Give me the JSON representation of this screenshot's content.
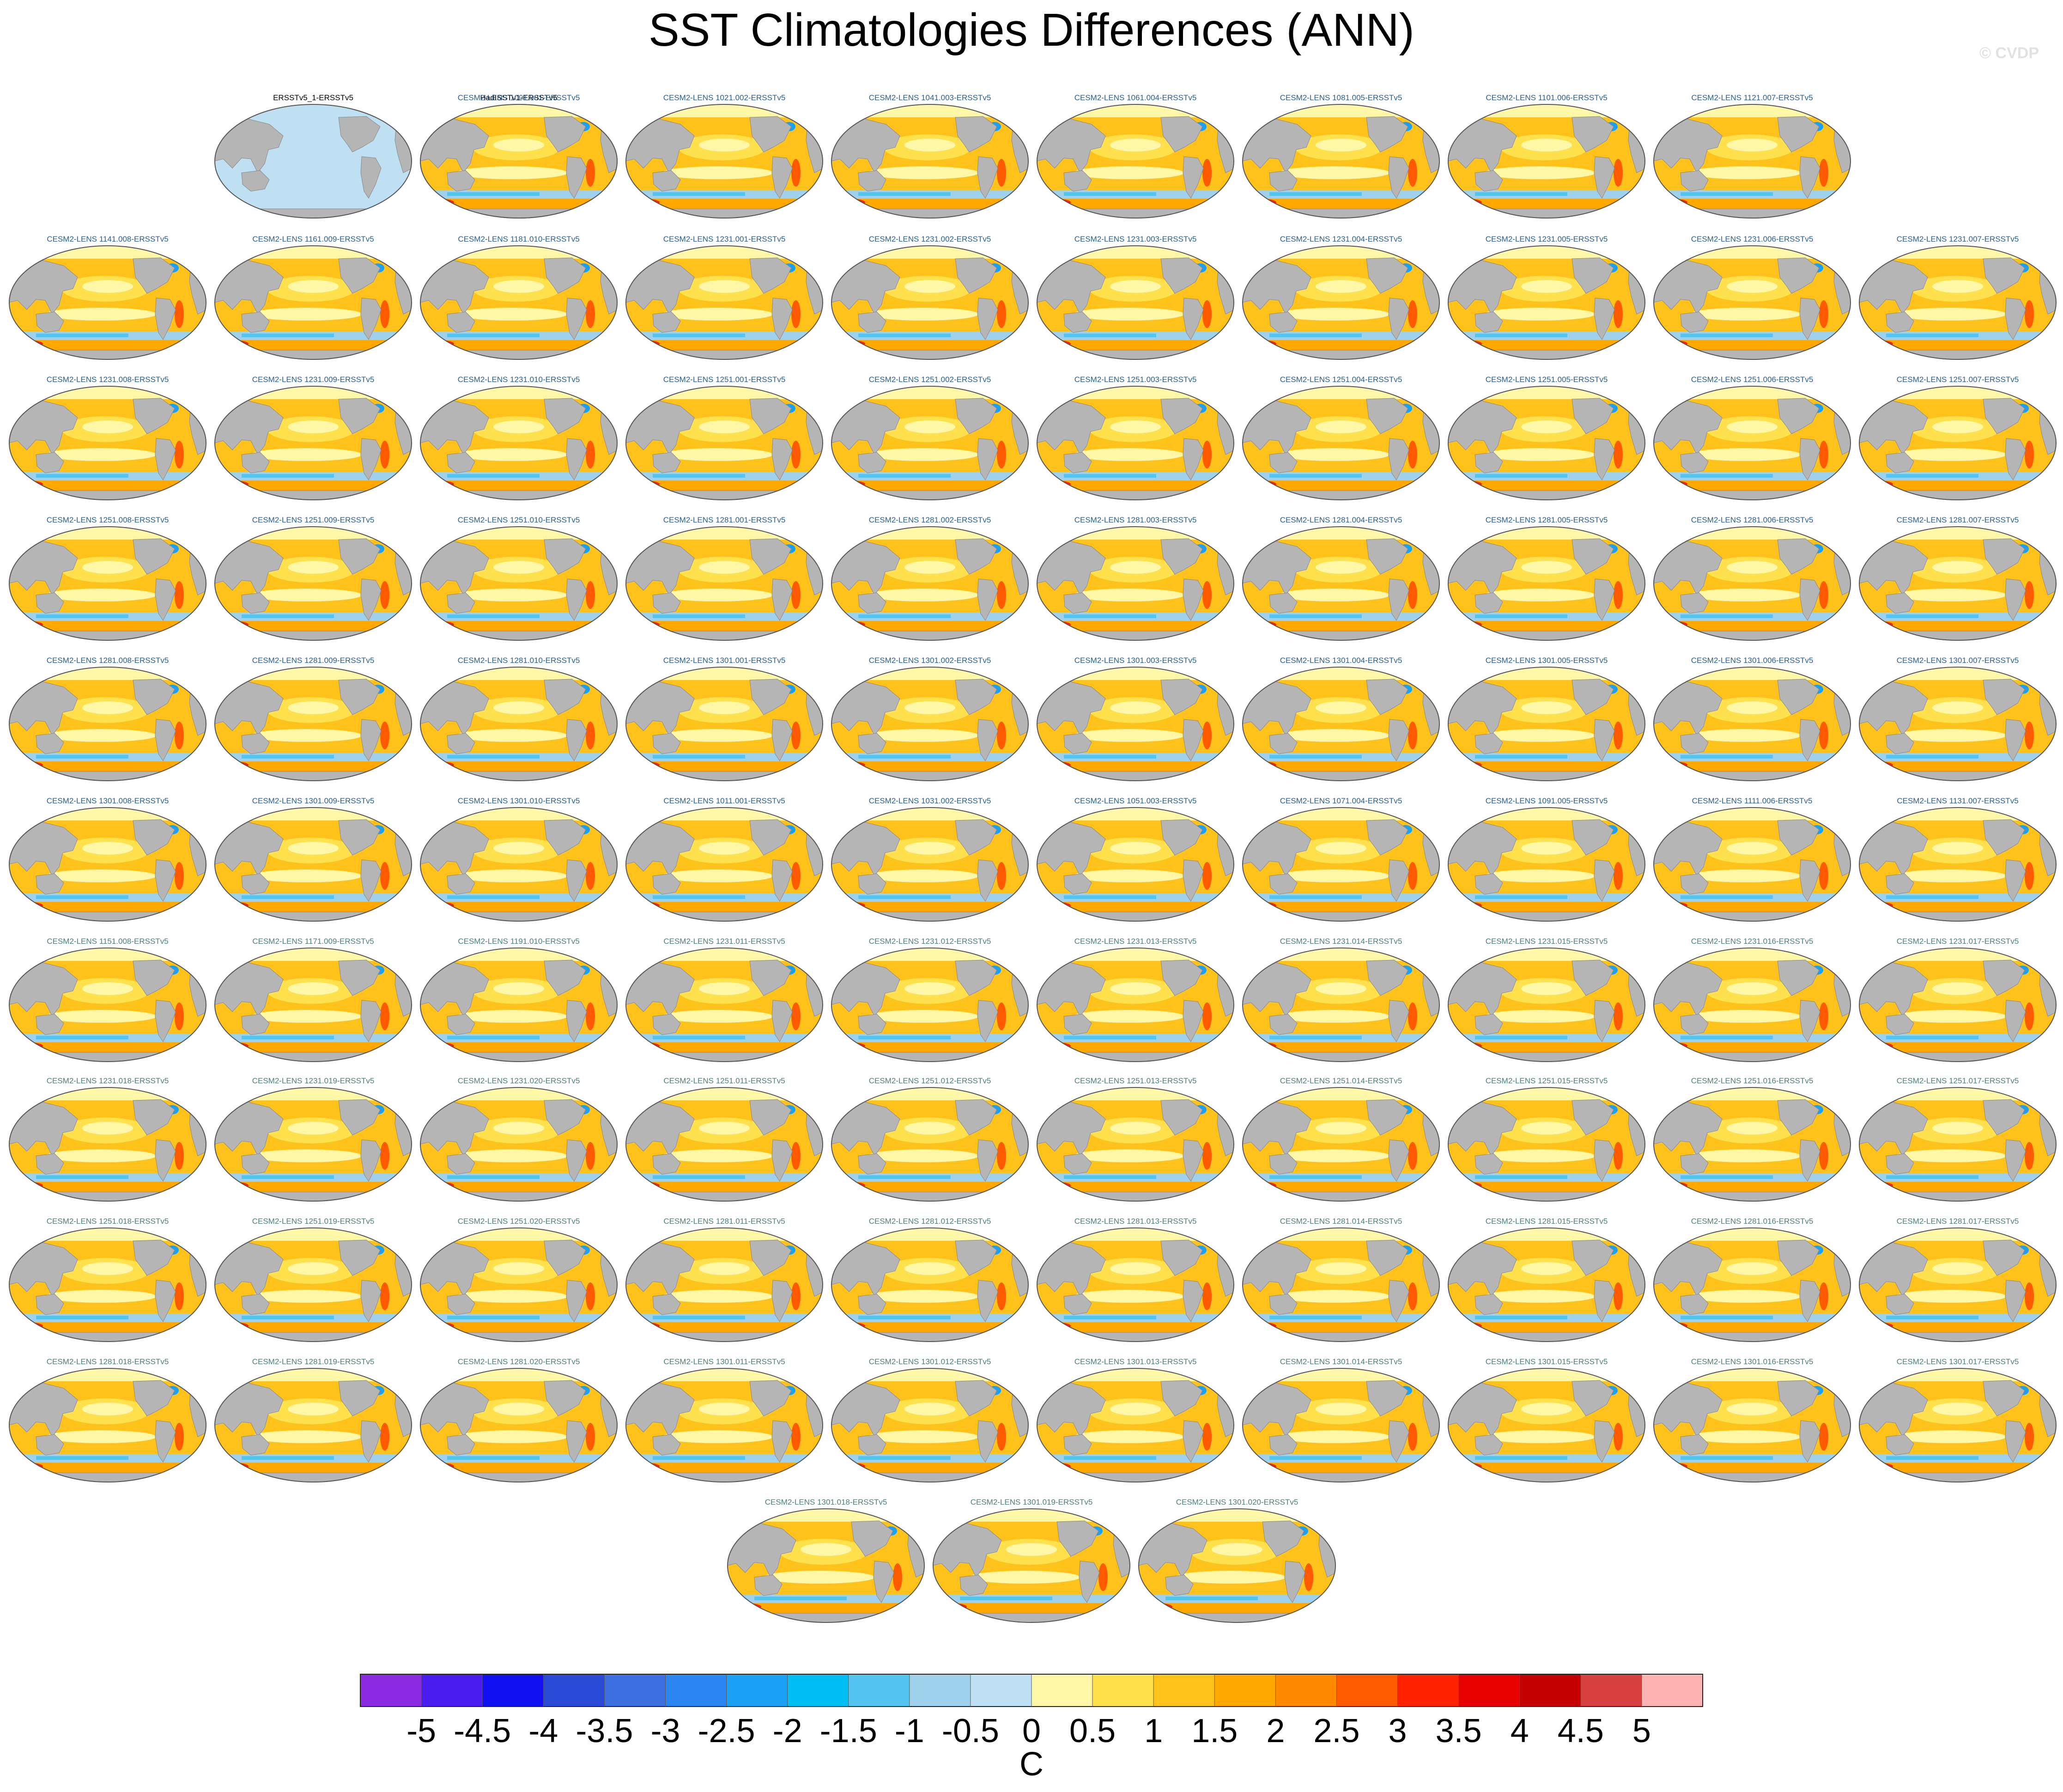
{
  "title": "SST Climatologies Differences (ANN)",
  "watermark": "© CVDP",
  "chart_data": {
    "type": "heatmap",
    "title": "SST Climatologies Differences (ANN)",
    "colorbar": {
      "unit": "C",
      "tick_labels": [
        "-5",
        "-4.5",
        "-4",
        "-3.5",
        "-3",
        "-2.5",
        "-2",
        "-1.5",
        "-1",
        "-0.5",
        "0",
        "0.5",
        "1",
        "1.5",
        "2",
        "2.5",
        "3",
        "3.5",
        "4",
        "4.5",
        "5"
      ],
      "colors": [
        "#8a2be2",
        "#4b1cf0",
        "#1010f0",
        "#2b4ad6",
        "#3d6fe0",
        "#2c86f2",
        "#1aa0f4",
        "#00bff5",
        "#54c4f0",
        "#9fd0ec",
        "#bfe0f3",
        "#fff7a8",
        "#ffe04d",
        "#ffc21a",
        "#ffa800",
        "#ff8a00",
        "#ff5a00",
        "#ff2200",
        "#e60000",
        "#c40000",
        "#d94040",
        "#ffb3b3"
      ]
    },
    "panels": [
      "ERSSTv5_1-ERSSTv5",
      "HadISSTv1-ERSSTv5",
      "CESM2-LENS 1001.001-ERSSTv5",
      "CESM2-LENS 1021.002-ERSSTv5",
      "CESM2-LENS 1041.003-ERSSTv5",
      "CESM2-LENS 1061.004-ERSSTv5",
      "CESM2-LENS 1081.005-ERSSTv5",
      "CESM2-LENS 1101.006-ERSSTv5",
      "CESM2-LENS 1121.007-ERSSTv5",
      "CESM2-LENS 1141.008-ERSSTv5",
      "CESM2-LENS 1161.009-ERSSTv5",
      "CESM2-LENS 1181.010-ERSSTv5",
      "CESM2-LENS 1231.001-ERSSTv5",
      "CESM2-LENS 1231.002-ERSSTv5",
      "CESM2-LENS 1231.003-ERSSTv5",
      "CESM2-LENS 1231.004-ERSSTv5",
      "CESM2-LENS 1231.005-ERSSTv5",
      "CESM2-LENS 1231.006-ERSSTv5",
      "CESM2-LENS 1231.007-ERSSTv5",
      "CESM2-LENS 1231.008-ERSSTv5",
      "CESM2-LENS 1231.009-ERSSTv5",
      "CESM2-LENS 1231.010-ERSSTv5",
      "CESM2-LENS 1251.001-ERSSTv5",
      "CESM2-LENS 1251.002-ERSSTv5",
      "CESM2-LENS 1251.003-ERSSTv5",
      "CESM2-LENS 1251.004-ERSSTv5",
      "CESM2-LENS 1251.005-ERSSTv5",
      "CESM2-LENS 1251.006-ERSSTv5",
      "CESM2-LENS 1251.007-ERSSTv5",
      "CESM2-LENS 1251.008-ERSSTv5",
      "CESM2-LENS 1251.009-ERSSTv5",
      "CESM2-LENS 1251.010-ERSSTv5",
      "CESM2-LENS 1281.001-ERSSTv5",
      "CESM2-LENS 1281.002-ERSSTv5",
      "CESM2-LENS 1281.003-ERSSTv5",
      "CESM2-LENS 1281.004-ERSSTv5",
      "CESM2-LENS 1281.005-ERSSTv5",
      "CESM2-LENS 1281.006-ERSSTv5",
      "CESM2-LENS 1281.007-ERSSTv5",
      "CESM2-LENS 1281.008-ERSSTv5",
      "CESM2-LENS 1281.009-ERSSTv5",
      "CESM2-LENS 1281.010-ERSSTv5",
      "CESM2-LENS 1301.001-ERSSTv5",
      "CESM2-LENS 1301.002-ERSSTv5",
      "CESM2-LENS 1301.003-ERSSTv5",
      "CESM2-LENS 1301.004-ERSSTv5",
      "CESM2-LENS 1301.005-ERSSTv5",
      "CESM2-LENS 1301.006-ERSSTv5",
      "CESM2-LENS 1301.007-ERSSTv5",
      "CESM2-LENS 1301.008-ERSSTv5",
      "CESM2-LENS 1301.009-ERSSTv5",
      "CESM2-LENS 1301.010-ERSSTv5",
      "CESM2-LENS 1011.001-ERSSTv5",
      "CESM2-LENS 1031.002-ERSSTv5",
      "CESM2-LENS 1051.003-ERSSTv5",
      "CESM2-LENS 1071.004-ERSSTv5",
      "CESM2-LENS 1091.005-ERSSTv5",
      "CESM2-LENS 1111.006-ERSSTv5",
      "CESM2-LENS 1131.007-ERSSTv5",
      "CESM2-LENS 1151.008-ERSSTv5",
      "CESM2-LENS 1171.009-ERSSTv5",
      "CESM2-LENS 1191.010-ERSSTv5",
      "CESM2-LENS 1231.011-ERSSTv5",
      "CESM2-LENS 1231.012-ERSSTv5",
      "CESM2-LENS 1231.013-ERSSTv5",
      "CESM2-LENS 1231.014-ERSSTv5",
      "CESM2-LENS 1231.015-ERSSTv5",
      "CESM2-LENS 1231.016-ERSSTv5",
      "CESM2-LENS 1231.017-ERSSTv5",
      "CESM2-LENS 1231.018-ERSSTv5",
      "CESM2-LENS 1231.019-ERSSTv5",
      "CESM2-LENS 1231.020-ERSSTv5",
      "CESM2-LENS 1251.011-ERSSTv5",
      "CESM2-LENS 1251.012-ERSSTv5",
      "CESM2-LENS 1251.013-ERSSTv5",
      "CESM2-LENS 1251.014-ERSSTv5",
      "CESM2-LENS 1251.015-ERSSTv5",
      "CESM2-LENS 1251.016-ERSSTv5",
      "CESM2-LENS 1251.017-ERSSTv5",
      "CESM2-LENS 1251.018-ERSSTv5",
      "CESM2-LENS 1251.019-ERSSTv5",
      "CESM2-LENS 1251.020-ERSSTv5",
      "CESM2-LENS 1281.011-ERSSTv5",
      "CESM2-LENS 1281.012-ERSSTv5",
      "CESM2-LENS 1281.013-ERSSTv5",
      "CESM2-LENS 1281.014-ERSSTv5",
      "CESM2-LENS 1281.015-ERSSTv5",
      "CESM2-LENS 1281.016-ERSSTv5",
      "CESM2-LENS 1281.017-ERSSTv5",
      "CESM2-LENS 1281.018-ERSSTv5",
      "CESM2-LENS 1281.019-ERSSTv5",
      "CESM2-LENS 1281.020-ERSSTv5",
      "CESM2-LENS 1301.011-ERSSTv5",
      "CESM2-LENS 1301.012-ERSSTv5",
      "CESM2-LENS 1301.013-ERSSTv5",
      "CESM2-LENS 1301.014-ERSSTv5",
      "CESM2-LENS 1301.015-ERSSTv5",
      "CESM2-LENS 1301.016-ERSSTv5",
      "CESM2-LENS 1301.017-ERSSTv5",
      "CESM2-LENS 1301.018-ERSSTv5",
      "CESM2-LENS 1301.019-ERSSTv5",
      "CESM2-LENS 1301.020-ERSSTv5"
    ]
  }
}
